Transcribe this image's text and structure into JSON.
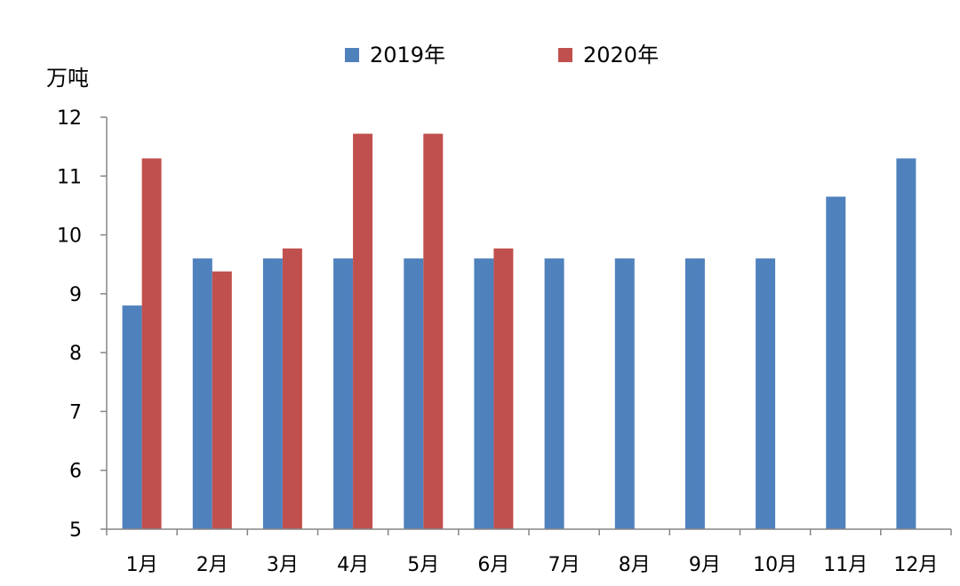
{
  "chart_data": {
    "type": "bar",
    "y_unit_label": "万吨",
    "categories": [
      "1月",
      "2月",
      "3月",
      "4月",
      "5月",
      "6月",
      "7月",
      "8月",
      "9月",
      "10月",
      "11月",
      "12月"
    ],
    "series": [
      {
        "name": "2019年",
        "color": "#4F81BD",
        "values": [
          8.8,
          9.6,
          9.6,
          9.6,
          9.6,
          9.6,
          9.6,
          9.6,
          9.6,
          9.6,
          10.65,
          11.3
        ]
      },
      {
        "name": "2020年",
        "color": "#C0504D",
        "values": [
          11.3,
          9.38,
          9.77,
          11.72,
          11.72,
          9.77,
          null,
          null,
          null,
          null,
          null,
          null
        ]
      }
    ],
    "ylim": [
      5,
      12
    ],
    "yticks": [
      5,
      6,
      7,
      8,
      9,
      10,
      11,
      12
    ],
    "grid": false,
    "legend_position": "top"
  }
}
